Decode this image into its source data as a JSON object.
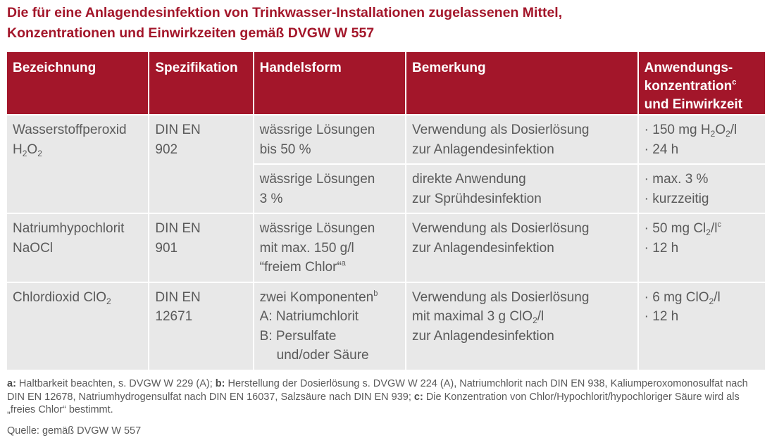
{
  "title": {
    "line1": "Die für eine Anlagendesinfektion von Trinkwasser-Installationen zugelassenen Mittel,",
    "line2": "Konzentrationen und Einwirkzeiten gemäß DVGW W 557"
  },
  "table": {
    "headers": {
      "bezeichnung": "Bezeichnung",
      "spezifikation": "Spezifikation",
      "handelsform": "Handelsform",
      "bemerkung": "Bemerkung",
      "anwendung_1": "Anwendungs-",
      "anwendung_2": "konzentration",
      "anwendung_sup": "c",
      "anwendung_3": "und Einwirkzeit"
    },
    "rows": [
      {
        "bez_name": "Wasserstoffperoxid",
        "bez_formula_a": "H",
        "bez_formula_sub1": "2",
        "bez_formula_b": "O",
        "bez_formula_sub2": "2",
        "spec_1": "DIN EN",
        "spec_2": "902",
        "handels_1": "wässrige Lösungen",
        "handels_2": "bis 50 %",
        "bem_1": "Verwendung als Dosierlösung",
        "bem_2": "zur Anlagendesinfektion",
        "anw_1a": "· 150 mg H",
        "anw_1sub1": "2",
        "anw_1b": "O",
        "anw_1sub2": "2",
        "anw_1c": "/l",
        "anw_2": "· 24 h"
      },
      {
        "handels_1": "wässrige Lösungen",
        "handels_2": "3 %",
        "bem_1": "direkte Anwendung",
        "bem_2": "zur Sprühdesinfektion",
        "anw_1": "· max. 3 %",
        "anw_2": "· kurzzeitig"
      },
      {
        "bez_name": "Natriumhypochlorit",
        "bez_formula": "NaOCl",
        "spec_1": "DIN EN",
        "spec_2": "901",
        "handels_1": "wässrige Lösungen",
        "handels_2": "mit max. 150 g/l",
        "handels_3": "“freiem Chlor“",
        "handels_3_sup": "a",
        "bem_1": "Verwendung als Dosierlösung",
        "bem_2": "zur Anlagendesinfektion",
        "anw_1a": "· 50 mg Cl",
        "anw_1sub": "2",
        "anw_1b": "/l",
        "anw_1sup": "c",
        "anw_2": "· 12 h"
      },
      {
        "bez_name": "Chlordioxid ClO",
        "bez_sub": "2",
        "spec_1": "DIN EN",
        "spec_2": "12671",
        "handels_1": "zwei Komponenten",
        "handels_1_sup": "b",
        "handels_2": "A: Natriumchlorit",
        "handels_3": "B: Persulfate",
        "handels_4": "und/oder Säure",
        "bem_1": "Verwendung als Dosierlösung",
        "bem_2a": "mit maximal 3 g ClO",
        "bem_2sub": "2",
        "bem_2b": "/l",
        "bem_3": "zur Anlagendesinfektion",
        "anw_1a": "· 6 mg ClO",
        "anw_1sub": "2",
        "anw_1b": "/l",
        "anw_2": "· 12 h"
      }
    ]
  },
  "footnotes": {
    "a_key": "a:",
    "a_text": " Haltbarkeit beachten, s. DVGW W 229 (A); ",
    "b_key": "b:",
    "b_text": " Herstellung der Dosierlösung s. DVGW W 224 (A), Natriumchlorit nach DIN EN 938, Kaliumperoxomonosulfat nach DIN EN 12678, Natriumhydrogensulfat nach DIN EN 16037, Salzsäure nach DIN EN 939; ",
    "c_key": "c:",
    "c_text": " Die Konzentration von Chlor/Hypochlorit/hypochloriger Säure wird als „freies Chlor“ bestimmt."
  },
  "source": "Quelle: gemäß DVGW W 557",
  "colors": {
    "accent": "#a3162a",
    "cell_bg": "#e8e8e8",
    "text": "#5a5a5a"
  }
}
